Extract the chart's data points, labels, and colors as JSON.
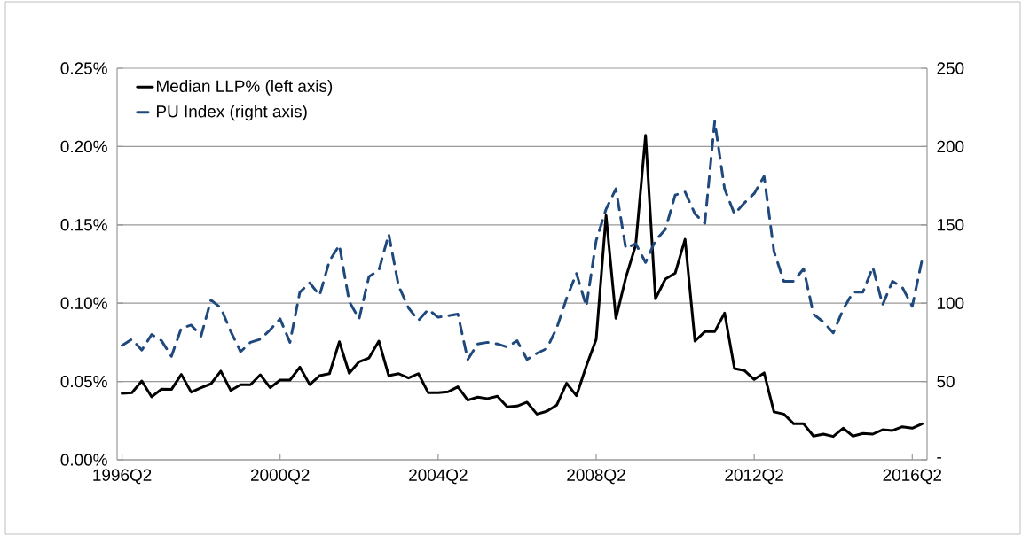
{
  "chart_data": {
    "type": "line",
    "categories": [
      "1996Q2",
      null,
      null,
      null,
      null,
      null,
      null,
      null,
      null,
      null,
      null,
      null,
      null,
      null,
      null,
      null,
      "2000Q2",
      null,
      null,
      null,
      null,
      null,
      null,
      null,
      null,
      null,
      null,
      null,
      null,
      null,
      null,
      null,
      "2004Q2",
      null,
      null,
      null,
      null,
      null,
      null,
      null,
      null,
      null,
      null,
      null,
      null,
      null,
      null,
      null,
      "2008Q2",
      null,
      null,
      null,
      null,
      null,
      null,
      null,
      null,
      null,
      null,
      null,
      null,
      null,
      null,
      null,
      "2012Q2",
      null,
      null,
      null,
      null,
      null,
      null,
      null,
      null,
      null,
      null,
      null,
      null,
      null,
      null,
      null,
      "2016Q2",
      null
    ],
    "series": [
      {
        "name": "Median LLP% (left axis)",
        "color": "#000000",
        "line_style": "solid",
        "values": [
          0.0424,
          0.0428,
          0.0503,
          0.0402,
          0.0451,
          0.0449,
          0.0545,
          0.0432,
          0.046,
          0.0485,
          0.0566,
          0.0443,
          0.0479,
          0.0479,
          0.0543,
          0.046,
          0.0509,
          0.0509,
          0.0592,
          0.048,
          0.0537,
          0.055,
          0.0754,
          0.0553,
          0.0626,
          0.065,
          0.0758,
          0.0537,
          0.055,
          0.0522,
          0.055,
          0.0428,
          0.0428,
          0.0434,
          0.0466,
          0.0381,
          0.04,
          0.0391,
          0.0406,
          0.0338,
          0.0343,
          0.0368,
          0.0292,
          0.031,
          0.0349,
          0.0489,
          0.0409,
          0.0598,
          0.077,
          0.156,
          0.0903,
          0.1163,
          0.137,
          0.2072,
          0.1028,
          0.1154,
          0.1192,
          0.1408,
          0.0758,
          0.0818,
          0.0818,
          0.0937,
          0.0583,
          0.057,
          0.0513,
          0.0555,
          0.0306,
          0.0292,
          0.023,
          0.023,
          0.0151,
          0.0164,
          0.0149,
          0.0202,
          0.0151,
          0.0168,
          0.0164,
          0.0192,
          0.0187,
          0.0211,
          0.0202,
          0.023
        ]
      },
      {
        "name": "PU Index (right axis)",
        "color": "#1f497d",
        "line_style": "dashed",
        "axis": "y2",
        "values": [
          73,
          77,
          70,
          80,
          76,
          66,
          84,
          86,
          79,
          102,
          97,
          82,
          69,
          75,
          77,
          83,
          90,
          75,
          107,
          113,
          105,
          127,
          137,
          101,
          90,
          117,
          121,
          144,
          111,
          97,
          89,
          96,
          91,
          92,
          93,
          64,
          74,
          75,
          74,
          72,
          76,
          64,
          68,
          71,
          84,
          103,
          119,
          98,
          140,
          160,
          173,
          135,
          138,
          126,
          140,
          147,
          169,
          171,
          157,
          151,
          216,
          173,
          157,
          164,
          170,
          181,
          133,
          114,
          114,
          122,
          93,
          88,
          81,
          96,
          107,
          107,
          123,
          99,
          114,
          110,
          98,
          128
        ]
      }
    ],
    "ylim": [
      0,
      0.25
    ],
    "yticks": [
      {
        "value": 0,
        "label": "0.00%"
      },
      {
        "value": 0.05,
        "label": "0.05%"
      },
      {
        "value": 0.1,
        "label": "0.10%"
      },
      {
        "value": 0.15,
        "label": "0.15%"
      },
      {
        "value": 0.2,
        "label": "0.20%"
      },
      {
        "value": 0.25,
        "label": "0.25%"
      }
    ],
    "y2lim": [
      0,
      250
    ],
    "y2ticks": [
      {
        "value": 0,
        "label": "-"
      },
      50,
      100,
      150,
      200,
      250
    ],
    "grid": "y",
    "legend": "top left"
  }
}
